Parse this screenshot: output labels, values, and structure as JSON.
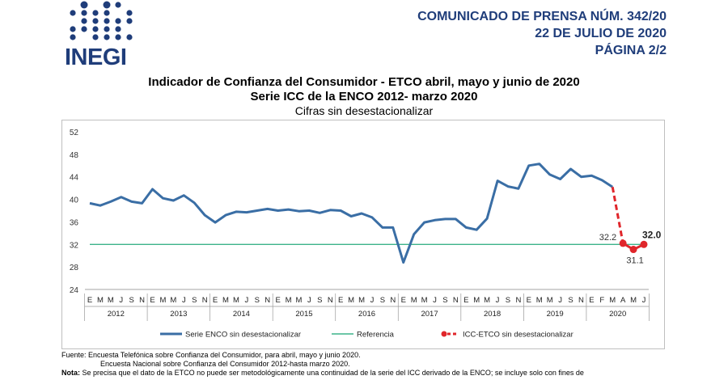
{
  "header": {
    "logo_text": "INEGI",
    "press_line1": "COMUNICADO DE PRENSA NÚM. 342/20",
    "press_line2": "22 DE JULIO DE 2020",
    "press_line3": "PÁGINA 2/2"
  },
  "colors": {
    "brand": "#1f3d7a",
    "series_enco": "#3a6ea5",
    "reference": "#3cb38a",
    "series_etco": "#e0262b"
  },
  "chart_data": {
    "type": "line",
    "title": "Indicador de Confianza del Consumidor - ETCO abril, mayo y junio de 2020",
    "subtitle": "Serie ICC de la ENCO 2012- marzo 2020",
    "subtitle2": "Cifras sin desestacionalizar",
    "ylim": [
      24,
      52
    ],
    "yticks": [
      "24",
      "28",
      "32",
      "36",
      "40",
      "44",
      "48",
      "52"
    ],
    "month_labels": [
      "E",
      "M",
      "M",
      "J",
      "S",
      "N",
      "E",
      "M",
      "M",
      "J",
      "S",
      "N",
      "E",
      "M",
      "M",
      "J",
      "S",
      "N",
      "E",
      "M",
      "M",
      "J",
      "S",
      "N",
      "E",
      "M",
      "M",
      "J",
      "S",
      "N",
      "E",
      "M",
      "M",
      "J",
      "S",
      "N",
      "E",
      "M",
      "M",
      "J",
      "S",
      "N",
      "E",
      "M",
      "M",
      "J",
      "S",
      "N",
      "E",
      "F",
      "M",
      "A",
      "M",
      "J"
    ],
    "years": [
      {
        "label": "2012",
        "start": 0,
        "end": 5
      },
      {
        "label": "2013",
        "start": 6,
        "end": 11
      },
      {
        "label": "2014",
        "start": 12,
        "end": 17
      },
      {
        "label": "2015",
        "start": 18,
        "end": 23
      },
      {
        "label": "2016",
        "start": 24,
        "end": 29
      },
      {
        "label": "2017",
        "start": 30,
        "end": 35
      },
      {
        "label": "2018",
        "start": 36,
        "end": 41
      },
      {
        "label": "2019",
        "start": 42,
        "end": 47
      },
      {
        "label": "2020",
        "start": 48,
        "end": 53
      }
    ],
    "series": [
      {
        "name": "Serie ENCO sin desestacionalizar",
        "values": [
          39.3,
          38.9,
          39.6,
          40.4,
          39.6,
          39.3,
          41.8,
          40.2,
          39.8,
          40.7,
          39.4,
          37.2,
          35.9,
          37.2,
          37.8,
          37.7,
          38.0,
          38.3,
          38.0,
          38.2,
          37.9,
          38.0,
          37.6,
          38.1,
          38.0,
          37.0,
          37.5,
          36.8,
          35.0,
          35.0,
          28.8,
          33.8,
          35.9,
          36.3,
          36.5,
          36.5,
          35.0,
          34.6,
          36.6,
          43.3,
          42.3,
          41.9,
          46.0,
          46.3,
          44.4,
          43.6,
          45.4,
          44.0,
          44.2,
          43.4,
          42.2,
          null,
          null,
          null
        ]
      },
      {
        "name": "Referencia",
        "value": 32.0
      },
      {
        "name": "ICC-ETCO sin desestacionalizar",
        "values": [
          null,
          null,
          null,
          null,
          null,
          null,
          null,
          null,
          null,
          null,
          null,
          null,
          null,
          null,
          null,
          null,
          null,
          null,
          null,
          null,
          null,
          null,
          null,
          null,
          null,
          null,
          null,
          null,
          null,
          null,
          null,
          null,
          null,
          null,
          null,
          null,
          null,
          null,
          null,
          null,
          null,
          null,
          null,
          null,
          null,
          null,
          null,
          null,
          null,
          null,
          42.2,
          32.2,
          31.1,
          32.0
        ]
      }
    ],
    "data_labels": [
      "32.2",
      "31.1",
      "32.0"
    ],
    "legend": [
      "Serie ENCO sin desestacionalizar",
      "Referencia",
      "ICC-ETCO sin desestacionalizar"
    ],
    "legend_position": "bottom",
    "grid": false
  },
  "notes": {
    "fuente_label": "Fuente:",
    "fuente_line1": "Encuesta Telefónica sobre Confianza del Consumidor, para abril, mayo y junio 2020.",
    "fuente_line2": "Encuesta Nacional sobre Confianza del Consumidor 2012-hasta marzo 2020.",
    "nota_label": "Nota:",
    "nota_text": "Se precisa que el dato de la ETCO no puede ser metodológicamente una continuidad de la serie del ICC derivado de la ENCO; se incluye solo con fines de"
  }
}
